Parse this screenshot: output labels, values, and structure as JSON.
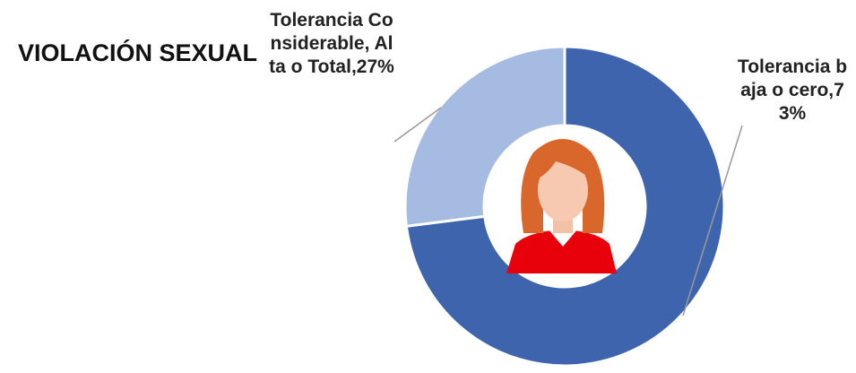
{
  "chart_data": {
    "type": "donut",
    "title": "VIOLACIÓN SEXUAL",
    "values": [
      73,
      27
    ],
    "value_labels": [
      "Tolerancia baja o cero,73%",
      "Tolerancia Considerable, Alta o Total,27%"
    ],
    "colors": [
      "#3e64ad",
      "#a6bbe2"
    ]
  }
}
